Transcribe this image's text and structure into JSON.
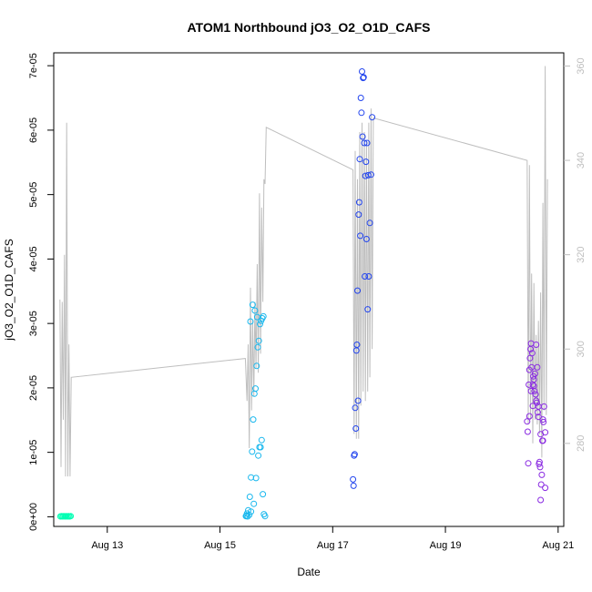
{
  "chart_data": {
    "type": "scatter",
    "title": "ATOM1 Northbound jO3_O2_O1D_CAFS",
    "xlabel": "Date",
    "ylabel": "jO3_O2_O1D_CAFS",
    "xlim": [
      12.05,
      21.1
    ],
    "ylim": [
      -1.5e-06,
      7.2e-05
    ],
    "ylim_right": [
      262.4,
      362.8
    ],
    "x_ticks": [
      {
        "label": "Aug 13",
        "value": 13
      },
      {
        "label": "Aug 15",
        "value": 15
      },
      {
        "label": "Aug 17",
        "value": 17
      },
      {
        "label": "Aug 19",
        "value": 19
      },
      {
        "label": "Aug 21",
        "value": 21
      }
    ],
    "y_ticks": [
      {
        "label": "0e+00",
        "value": 0
      },
      {
        "label": "1e-05",
        "value": 1e-05
      },
      {
        "label": "2e-05",
        "value": 2e-05
      },
      {
        "label": "3e-05",
        "value": 3e-05
      },
      {
        "label": "4e-05",
        "value": 4e-05
      },
      {
        "label": "5e-05",
        "value": 5e-05
      },
      {
        "label": "6e-05",
        "value": 6e-05
      },
      {
        "label": "7e-05",
        "value": 7e-05
      }
    ],
    "y_ticks_right": [
      {
        "label": "280",
        "value": 280
      },
      {
        "label": "300",
        "value": 300
      },
      {
        "label": "320",
        "value": 320
      },
      {
        "label": "340",
        "value": 340
      },
      {
        "label": "360",
        "value": 360
      }
    ],
    "colors": {
      "series1": "#00ffb3",
      "series2": "#1ab8ee",
      "series3": "#2345ee",
      "series4": "#8a2be2",
      "line": "#bebebe"
    },
    "series": [
      {
        "name": "series1",
        "color": "#00ffb3",
        "x": [
          12.17,
          12.19,
          12.21,
          12.23,
          12.25,
          12.27,
          12.29,
          12.31,
          12.33,
          12.35
        ],
        "y": [
          5e-08,
          1e-07,
          5e-08,
          1e-07,
          5e-08,
          1e-07,
          5e-08,
          1e-07,
          5e-08,
          1e-07
        ]
      },
      {
        "name": "series2",
        "color": "#1ab8ee",
        "x": [
          15.46,
          15.48,
          15.5,
          15.53,
          15.55,
          15.57,
          15.59,
          15.61,
          15.63,
          15.65,
          15.67,
          15.69,
          15.71,
          15.73,
          15.75,
          15.77,
          15.49,
          15.52,
          15.55,
          15.6,
          15.64,
          15.68,
          15.72,
          15.74,
          15.76,
          15.7,
          15.66,
          15.62,
          15.58,
          15.54,
          15.47,
          15.78,
          15.8
        ],
        "y": [
          1e-07,
          5e-07,
          1e-06,
          3.1e-06,
          6.1e-06,
          1.01e-05,
          1.51e-05,
          1.91e-05,
          1.99e-05,
          2.34e-05,
          2.63e-05,
          2.73e-05,
          2.99e-05,
          3.04e-05,
          3.08e-05,
          3.11e-05,
          5e-08,
          3e-07,
          8e-07,
          2e-06,
          6e-06,
          9.5e-06,
          1.08e-05,
          1.19e-05,
          3.5e-06,
          1.08e-05,
          3.1e-05,
          3.2e-05,
          3.29e-05,
          3.03e-05,
          2e-07,
          4e-07,
          1e-07
        ]
      },
      {
        "name": "series3",
        "color": "#2345ee",
        "x": [
          17.36,
          17.38,
          17.4,
          17.42,
          17.44,
          17.46,
          17.48,
          17.5,
          17.52,
          17.54,
          17.56,
          17.58,
          17.6,
          17.62,
          17.64,
          17.66,
          17.68,
          17.7,
          17.37,
          17.39,
          17.41,
          17.43,
          17.45,
          17.47,
          17.49,
          17.51,
          17.53,
          17.55,
          17.57,
          17.59,
          17.61,
          17.63
        ],
        "y": [
          5.8e-06,
          9.5e-06,
          1.69e-05,
          2.58e-05,
          3.51e-05,
          4.69e-05,
          5.55e-05,
          6.5e-05,
          6.91e-05,
          6.81e-05,
          5.8e-05,
          5.29e-05,
          4.31e-05,
          3.22e-05,
          3.73e-05,
          4.56e-05,
          5.31e-05,
          6.2e-05,
          4.8e-06,
          9.7e-06,
          1.37e-05,
          2.67e-05,
          1.8e-05,
          4.88e-05,
          4.36e-05,
          6.27e-05,
          5.9e-05,
          6.82e-05,
          3.73e-05,
          5.51e-05,
          5.8e-05,
          5.3e-05
        ]
      },
      {
        "name": "series4",
        "color": "#8a2be2",
        "x": [
          20.45,
          20.47,
          20.49,
          20.51,
          20.53,
          20.55,
          20.57,
          20.59,
          20.61,
          20.63,
          20.65,
          20.67,
          20.69,
          20.71,
          20.73,
          20.75,
          20.77,
          20.46,
          20.48,
          20.5,
          20.52,
          20.54,
          20.56,
          20.58,
          20.6,
          20.62,
          20.64,
          20.66,
          20.68,
          20.7,
          20.72,
          20.74,
          20.52,
          20.57,
          20.61,
          20.65,
          20.69,
          20.73,
          20.77,
          20.49,
          20.55
        ],
        "y": [
          1.48e-05,
          8.3e-06,
          2.28e-05,
          2.6e-05,
          2.32e-05,
          2.05e-05,
          2.03e-05,
          2.22e-05,
          2.67e-05,
          2.32e-05,
          1.71e-05,
          8.5e-06,
          2.6e-06,
          6.5e-06,
          1.51e-05,
          1.71e-05,
          1.31e-05,
          1.32e-05,
          2.05e-05,
          2.46e-05,
          2.69e-05,
          2.54e-05,
          2.18e-05,
          1.95e-05,
          1.9e-05,
          1.77e-05,
          1.62e-05,
          8.2e-06,
          7.7e-06,
          5e-06,
          1.18e-05,
          1.47e-05,
          1.95e-05,
          2.13e-05,
          1.8e-05,
          1.55e-05,
          1.28e-05,
          1.18e-05,
          4.5e-06,
          1.56e-05,
          1.72e-05
        ]
      }
    ],
    "line_series": {
      "name": "secondary",
      "axis": "right",
      "color": "#bebebe",
      "x": [
        12.16,
        12.18,
        12.2,
        12.22,
        12.24,
        12.26,
        12.28,
        12.3,
        12.32,
        12.34,
        12.36,
        15.45,
        15.48,
        15.5,
        15.52,
        15.54,
        15.56,
        15.58,
        15.6,
        15.62,
        15.64,
        15.66,
        15.68,
        15.7,
        15.72,
        15.74,
        15.76,
        15.78,
        15.8,
        15.82,
        17.36,
        17.38,
        17.4,
        17.42,
        17.44,
        17.46,
        17.48,
        17.5,
        17.52,
        17.54,
        17.56,
        17.58,
        17.6,
        17.62,
        17.64,
        17.66,
        17.68,
        17.7,
        17.72,
        20.45,
        20.47,
        20.49,
        20.51,
        20.53,
        20.55,
        20.57,
        20.59,
        20.61,
        20.63,
        20.65,
        20.67,
        20.69,
        20.71,
        20.73,
        20.75,
        20.77,
        20.79,
        20.81
      ],
      "y": [
        310.5,
        275,
        310,
        285,
        320,
        273,
        348,
        273,
        301,
        273,
        294,
        298,
        289,
        301,
        279,
        313,
        287,
        306,
        290,
        310,
        296,
        318,
        295,
        333,
        299,
        330,
        310,
        336,
        335,
        347,
        338,
        282,
        342,
        281,
        336,
        281,
        346,
        288,
        348,
        291,
        346,
        289,
        344,
        291,
        348,
        294,
        351,
        300,
        349,
        340,
        284,
        339,
        285,
        316,
        280,
        314,
        285,
        303,
        284,
        306,
        282,
        312,
        277,
        331,
        287,
        360,
        286,
        336
      ]
    }
  }
}
